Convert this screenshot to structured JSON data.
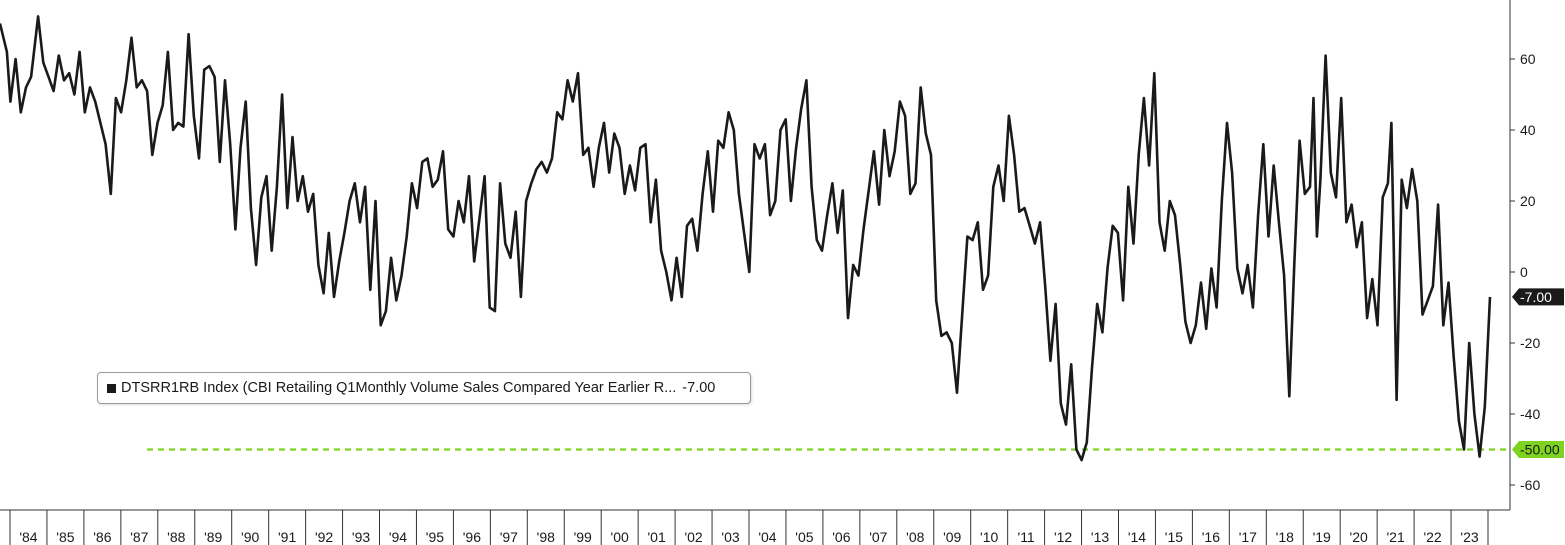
{
  "chart_data": {
    "type": "line",
    "title": "",
    "xlabel": "",
    "ylabel": "",
    "ylim": [
      -68,
      76
    ],
    "xlim": [
      1983.0,
      2024.0
    ],
    "y_ticks": [
      60,
      40,
      20,
      0,
      -20,
      -40,
      -60
    ],
    "y_tick_labels": [
      "60",
      "40",
      "20",
      "0",
      "-20",
      "-40",
      "-60"
    ],
    "x_tick_labels": [
      "'84",
      "'85",
      "'86",
      "'87",
      "'88",
      "'89",
      "'90",
      "'91",
      "'92",
      "'93",
      "'94",
      "'95",
      "'96",
      "'97",
      "'98",
      "'99",
      "'00",
      "'01",
      "'02",
      "'03",
      "'04",
      "'05",
      "'06",
      "'07",
      "'08",
      "'09",
      "'10",
      "'11",
      "'12",
      "'13",
      "'14",
      "'15",
      "'16",
      "'17",
      "'18",
      "'19",
      "'20",
      "'21",
      "'22",
      "'23"
    ],
    "series": [
      {
        "name": "DTSRR1RB Index (CBI Retailing Q1Monthly Volume Sales Compared Year Earlier R...",
        "color": "#1a1a1a",
        "last_value_label": "-7.00",
        "points": [
          [
            1983.0,
            70
          ],
          [
            1983.2,
            62
          ],
          [
            1983.3,
            48
          ],
          [
            1983.45,
            60
          ],
          [
            1983.6,
            45
          ],
          [
            1983.75,
            52
          ],
          [
            1983.9,
            55
          ],
          [
            1984.1,
            72
          ],
          [
            1984.25,
            59
          ],
          [
            1984.4,
            55
          ],
          [
            1984.55,
            51
          ],
          [
            1984.7,
            61
          ],
          [
            1984.85,
            54
          ],
          [
            1985.0,
            56
          ],
          [
            1985.15,
            50
          ],
          [
            1985.3,
            62
          ],
          [
            1985.45,
            45
          ],
          [
            1985.6,
            52
          ],
          [
            1985.75,
            48
          ],
          [
            1985.9,
            42
          ],
          [
            1986.05,
            36
          ],
          [
            1986.2,
            22
          ],
          [
            1986.35,
            49
          ],
          [
            1986.5,
            45
          ],
          [
            1986.65,
            54
          ],
          [
            1986.8,
            66
          ],
          [
            1986.95,
            52
          ],
          [
            1987.1,
            54
          ],
          [
            1987.25,
            51
          ],
          [
            1987.4,
            33
          ],
          [
            1987.55,
            42
          ],
          [
            1987.7,
            47
          ],
          [
            1987.85,
            62
          ],
          [
            1988.0,
            40
          ],
          [
            1988.15,
            42
          ],
          [
            1988.3,
            41
          ],
          [
            1988.45,
            67
          ],
          [
            1988.6,
            44
          ],
          [
            1988.75,
            32
          ],
          [
            1988.9,
            57
          ],
          [
            1989.05,
            58
          ],
          [
            1989.2,
            55
          ],
          [
            1989.35,
            31
          ],
          [
            1989.5,
            54
          ],
          [
            1989.65,
            36
          ],
          [
            1989.8,
            12
          ],
          [
            1989.95,
            35
          ],
          [
            1990.1,
            48
          ],
          [
            1990.25,
            18
          ],
          [
            1990.4,
            2
          ],
          [
            1990.55,
            21
          ],
          [
            1990.7,
            27
          ],
          [
            1990.85,
            6
          ],
          [
            1991.0,
            24
          ],
          [
            1991.15,
            50
          ],
          [
            1991.3,
            18
          ],
          [
            1991.45,
            38
          ],
          [
            1991.6,
            20
          ],
          [
            1991.75,
            27
          ],
          [
            1991.9,
            17
          ],
          [
            1992.05,
            22
          ],
          [
            1992.2,
            2
          ],
          [
            1992.35,
            -6
          ],
          [
            1992.5,
            11
          ],
          [
            1992.65,
            -7
          ],
          [
            1992.8,
            3
          ],
          [
            1992.95,
            11
          ],
          [
            1993.1,
            20
          ],
          [
            1993.25,
            25
          ],
          [
            1993.4,
            14
          ],
          [
            1993.55,
            24
          ],
          [
            1993.7,
            -5
          ],
          [
            1993.85,
            20
          ],
          [
            1994.0,
            -15
          ],
          [
            1994.15,
            -11
          ],
          [
            1994.3,
            4
          ],
          [
            1994.45,
            -8
          ],
          [
            1994.6,
            -1
          ],
          [
            1994.75,
            10
          ],
          [
            1994.9,
            25
          ],
          [
            1995.05,
            18
          ],
          [
            1995.2,
            31
          ],
          [
            1995.35,
            32
          ],
          [
            1995.5,
            24
          ],
          [
            1995.65,
            26
          ],
          [
            1995.8,
            34
          ],
          [
            1995.95,
            12
          ],
          [
            1996.1,
            10
          ],
          [
            1996.25,
            20
          ],
          [
            1996.4,
            14
          ],
          [
            1996.55,
            27
          ],
          [
            1996.7,
            3
          ],
          [
            1996.85,
            15
          ],
          [
            1997.0,
            27
          ],
          [
            1997.15,
            -10
          ],
          [
            1997.3,
            -11
          ],
          [
            1997.45,
            25
          ],
          [
            1997.6,
            8
          ],
          [
            1997.75,
            4
          ],
          [
            1997.9,
            17
          ],
          [
            1998.05,
            -7
          ],
          [
            1998.2,
            20
          ],
          [
            1998.35,
            25
          ],
          [
            1998.5,
            29
          ],
          [
            1998.65,
            31
          ],
          [
            1998.8,
            28
          ],
          [
            1998.95,
            32
          ],
          [
            1999.1,
            45
          ],
          [
            1999.25,
            43
          ],
          [
            1999.4,
            54
          ],
          [
            1999.55,
            48
          ],
          [
            1999.7,
            56
          ],
          [
            1999.85,
            33
          ],
          [
            2000.0,
            35
          ],
          [
            2000.15,
            24
          ],
          [
            2000.3,
            35
          ],
          [
            2000.45,
            42
          ],
          [
            2000.6,
            28
          ],
          [
            2000.75,
            39
          ],
          [
            2000.9,
            35
          ],
          [
            2001.05,
            22
          ],
          [
            2001.2,
            30
          ],
          [
            2001.35,
            23
          ],
          [
            2001.5,
            35
          ],
          [
            2001.65,
            36
          ],
          [
            2001.8,
            14
          ],
          [
            2001.95,
            26
          ],
          [
            2002.1,
            6
          ],
          [
            2002.25,
            0
          ],
          [
            2002.4,
            -8
          ],
          [
            2002.55,
            4
          ],
          [
            2002.7,
            -7
          ],
          [
            2002.85,
            13
          ],
          [
            2003.0,
            15
          ],
          [
            2003.15,
            6
          ],
          [
            2003.3,
            22
          ],
          [
            2003.45,
            34
          ],
          [
            2003.6,
            17
          ],
          [
            2003.75,
            37
          ],
          [
            2003.9,
            35
          ],
          [
            2004.05,
            45
          ],
          [
            2004.2,
            40
          ],
          [
            2004.35,
            22
          ],
          [
            2004.5,
            11
          ],
          [
            2004.65,
            0
          ],
          [
            2004.8,
            36
          ],
          [
            2004.95,
            32
          ],
          [
            2005.1,
            36
          ],
          [
            2005.25,
            16
          ],
          [
            2005.4,
            20
          ],
          [
            2005.55,
            40
          ],
          [
            2005.7,
            43
          ],
          [
            2005.85,
            20
          ],
          [
            2006.0,
            35
          ],
          [
            2006.15,
            46
          ],
          [
            2006.3,
            54
          ],
          [
            2006.45,
            24
          ],
          [
            2006.6,
            9
          ],
          [
            2006.75,
            6
          ],
          [
            2006.9,
            16
          ],
          [
            2007.05,
            25
          ],
          [
            2007.2,
            11
          ],
          [
            2007.35,
            23
          ],
          [
            2007.5,
            -13
          ],
          [
            2007.65,
            2
          ],
          [
            2007.8,
            -1
          ],
          [
            2007.95,
            12
          ],
          [
            2008.1,
            23
          ],
          [
            2008.25,
            34
          ],
          [
            2008.4,
            19
          ],
          [
            2008.55,
            40
          ],
          [
            2008.7,
            27
          ],
          [
            2008.85,
            34
          ],
          [
            2009.0,
            48
          ],
          [
            2009.15,
            44
          ],
          [
            2009.3,
            22
          ],
          [
            2009.45,
            25
          ],
          [
            2009.6,
            52
          ],
          [
            2009.75,
            39
          ],
          [
            2009.9,
            33
          ],
          [
            2010.05,
            -8
          ],
          [
            2010.2,
            -18
          ],
          [
            2010.35,
            -17
          ],
          [
            2010.5,
            -20
          ],
          [
            2010.65,
            -34
          ],
          [
            2010.8,
            -12
          ],
          [
            2010.95,
            10
          ],
          [
            2011.1,
            9
          ],
          [
            2011.25,
            14
          ],
          [
            2011.4,
            -5
          ],
          [
            2011.55,
            -1
          ],
          [
            2011.7,
            24
          ],
          [
            2011.85,
            30
          ],
          [
            2012.0,
            20
          ],
          [
            2012.15,
            44
          ],
          [
            2012.3,
            33
          ],
          [
            2012.45,
            17
          ],
          [
            2012.6,
            18
          ],
          [
            2012.75,
            13
          ],
          [
            2012.9,
            8
          ],
          [
            2013.05,
            14
          ],
          [
            2013.2,
            -4
          ],
          [
            2013.35,
            -25
          ],
          [
            2013.5,
            -9
          ],
          [
            2013.65,
            -37
          ],
          [
            2013.8,
            -43
          ],
          [
            2013.95,
            -26
          ],
          [
            2014.1,
            -50
          ],
          [
            2014.25,
            -53
          ],
          [
            2014.4,
            -48
          ],
          [
            2014.55,
            -27
          ],
          [
            2014.7,
            -9
          ],
          [
            2014.85,
            -17
          ],
          [
            2015.0,
            1
          ],
          [
            2015.15,
            13
          ],
          [
            2015.3,
            11
          ],
          [
            2015.45,
            -8
          ],
          [
            2015.6,
            24
          ],
          [
            2015.75,
            8
          ],
          [
            2015.9,
            33
          ],
          [
            2016.05,
            49
          ],
          [
            2016.2,
            30
          ],
          [
            2016.35,
            56
          ],
          [
            2016.5,
            14
          ],
          [
            2016.65,
            6
          ],
          [
            2016.8,
            20
          ],
          [
            2016.95,
            16
          ],
          [
            2017.1,
            2
          ],
          [
            2017.25,
            -14
          ],
          [
            2017.4,
            -20
          ],
          [
            2017.55,
            -15
          ],
          [
            2017.7,
            -3
          ],
          [
            2017.85,
            -16
          ],
          [
            2018.0,
            1
          ],
          [
            2018.15,
            -10
          ],
          [
            2018.3,
            20
          ],
          [
            2018.45,
            42
          ],
          [
            2018.6,
            28
          ],
          [
            2018.75,
            1
          ],
          [
            2018.9,
            -6
          ],
          [
            2019.05,
            2
          ],
          [
            2019.2,
            -10
          ],
          [
            2019.35,
            16
          ],
          [
            2019.5,
            36
          ],
          [
            2019.65,
            10
          ],
          [
            2019.8,
            30
          ],
          [
            2019.95,
            14
          ],
          [
            2020.1,
            -1
          ],
          [
            2020.25,
            -35
          ],
          [
            2020.4,
            3
          ],
          [
            2020.55,
            37
          ],
          [
            2020.7,
            22
          ],
          [
            2020.85,
            24
          ],
          [
            2020.95,
            49
          ],
          [
            2021.05,
            10
          ],
          [
            2021.15,
            26
          ],
          [
            2021.3,
            61
          ],
          [
            2021.45,
            28
          ],
          [
            2021.6,
            21
          ],
          [
            2021.75,
            49
          ],
          [
            2021.9,
            14
          ],
          [
            2022.05,
            19
          ],
          [
            2022.2,
            7
          ],
          [
            2022.35,
            14
          ],
          [
            2022.5,
            -13
          ],
          [
            2022.65,
            -2
          ],
          [
            2022.8,
            -15
          ],
          [
            2022.95,
            21
          ],
          [
            2023.1,
            25
          ],
          [
            2023.2,
            42
          ],
          [
            2023.35,
            -36
          ],
          [
            2023.5,
            26
          ],
          [
            2023.65,
            18
          ],
          [
            2023.8,
            29
          ],
          [
            2023.95,
            20
          ],
          [
            2024.1,
            -12
          ],
          [
            2024.25,
            -8
          ],
          [
            2024.4,
            -4
          ],
          [
            2024.55,
            19
          ],
          [
            2024.7,
            -15
          ],
          [
            2024.85,
            -3
          ],
          [
            2025.0,
            -24
          ],
          [
            2025.15,
            -42
          ],
          [
            2025.3,
            -50
          ],
          [
            2025.45,
            -20
          ],
          [
            2025.6,
            -40
          ],
          [
            2025.75,
            -52
          ],
          [
            2025.9,
            -38
          ],
          [
            2026.05,
            -7
          ]
        ]
      }
    ],
    "reference_line": {
      "value": -50,
      "label": "-50.00",
      "color": "#7ed321",
      "style": "dashed"
    },
    "legend": {
      "text": "DTSRR1RB Index (CBI Retailing Q1Monthly Volume Sales Compared Year Earlier R...",
      "value": "-7.00",
      "position": "lower-left"
    },
    "grid": false
  },
  "colors": {
    "background": "#ffffff",
    "line": "#1a1a1a",
    "threshold": "#7ed321",
    "axis": "#333333"
  }
}
